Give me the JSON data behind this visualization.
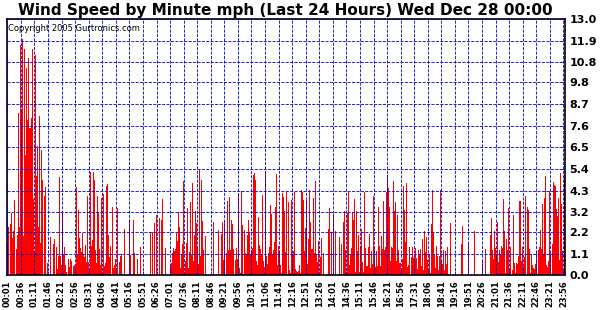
{
  "title": "Wind Speed by Minute mph (Last 24 Hours) Wed Dec 28 00:00",
  "copyright": "Copyright 2005 Gurtronics.com",
  "yticks": [
    0.0,
    1.1,
    2.2,
    3.2,
    4.3,
    5.4,
    6.5,
    7.6,
    8.7,
    9.8,
    10.8,
    11.9,
    13.0
  ],
  "ylim": [
    0.0,
    13.0
  ],
  "bar_color": "#ff0000",
  "grid_color": "#0000cc",
  "background_color": "#ffffff",
  "title_fontsize": 11,
  "xtick_labels": [
    "00:01",
    "00:36",
    "01:11",
    "01:46",
    "02:21",
    "02:56",
    "03:31",
    "04:06",
    "04:41",
    "05:16",
    "05:51",
    "06:26",
    "07:01",
    "07:36",
    "08:11",
    "08:46",
    "09:21",
    "09:56",
    "10:31",
    "11:06",
    "11:41",
    "12:16",
    "12:51",
    "13:26",
    "14:01",
    "14:36",
    "15:11",
    "15:46",
    "16:21",
    "16:56",
    "17:31",
    "18:06",
    "18:41",
    "19:16",
    "19:51",
    "20:26",
    "21:01",
    "21:36",
    "22:11",
    "22:46",
    "23:21",
    "23:56"
  ]
}
